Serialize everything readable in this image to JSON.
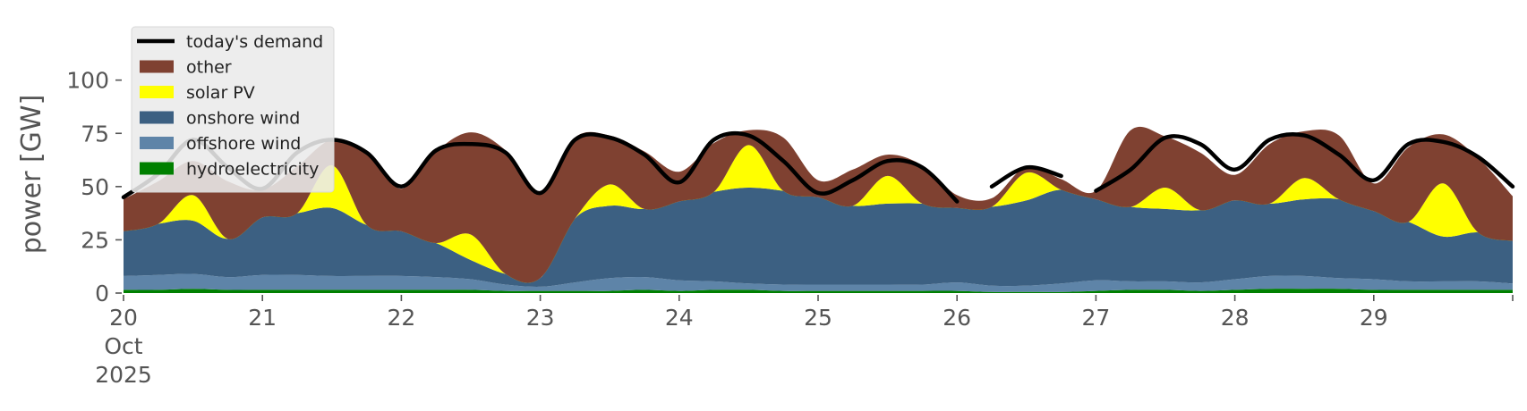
{
  "chart_data": {
    "type": "area",
    "title": "",
    "xlabel": "",
    "ylabel": "power [GW]",
    "ylim": [
      0,
      120
    ],
    "xlim": [
      "2025-10-20T00:00",
      "2025-10-30T00:00"
    ],
    "grid": false,
    "legend_position": "top-left",
    "y_ticks": [
      0,
      25,
      50,
      75,
      100
    ],
    "x_ticks": [
      {
        "date": "2025-10-20",
        "lines": [
          "20",
          "Oct",
          "2025"
        ]
      },
      {
        "date": "2025-10-21",
        "lines": [
          "21"
        ]
      },
      {
        "date": "2025-10-22",
        "lines": [
          "22"
        ]
      },
      {
        "date": "2025-10-23",
        "lines": [
          "23"
        ]
      },
      {
        "date": "2025-10-24",
        "lines": [
          "24"
        ]
      },
      {
        "date": "2025-10-25",
        "lines": [
          "25"
        ]
      },
      {
        "date": "2025-10-26",
        "lines": [
          "26"
        ]
      },
      {
        "date": "2025-10-27",
        "lines": [
          "27"
        ]
      },
      {
        "date": "2025-10-28",
        "lines": [
          "28"
        ]
      },
      {
        "date": "2025-10-29",
        "lines": [
          "29"
        ]
      },
      {
        "date": "2025-10-30",
        "lines": [
          ""
        ]
      }
    ],
    "x": [
      "2025-10-20T00:00",
      "2025-10-20T06:00",
      "2025-10-20T12:00",
      "2025-10-20T18:00",
      "2025-10-21T00:00",
      "2025-10-21T06:00",
      "2025-10-21T12:00",
      "2025-10-21T18:00",
      "2025-10-22T00:00",
      "2025-10-22T06:00",
      "2025-10-22T12:00",
      "2025-10-22T18:00",
      "2025-10-23T00:00",
      "2025-10-23T06:00",
      "2025-10-23T12:00",
      "2025-10-23T18:00",
      "2025-10-24T00:00",
      "2025-10-24T06:00",
      "2025-10-24T12:00",
      "2025-10-24T18:00",
      "2025-10-25T00:00",
      "2025-10-25T06:00",
      "2025-10-25T12:00",
      "2025-10-25T18:00",
      "2025-10-26T00:00",
      "2025-10-26T06:00",
      "2025-10-26T12:00",
      "2025-10-26T18:00",
      "2025-10-27T00:00",
      "2025-10-27T06:00",
      "2025-10-27T12:00",
      "2025-10-27T18:00",
      "2025-10-28T00:00",
      "2025-10-28T06:00",
      "2025-10-28T12:00",
      "2025-10-28T18:00",
      "2025-10-29T00:00",
      "2025-10-29T06:00",
      "2025-10-29T12:00",
      "2025-10-29T18:00",
      "2025-10-30T00:00"
    ],
    "series": [
      {
        "name": "hydroelectricity",
        "color": "#008000",
        "kind": "area",
        "values": [
          1.5,
          1.5,
          2,
          1.5,
          1.5,
          1.5,
          1.5,
          1.5,
          1.5,
          1.5,
          1.5,
          1,
          1,
          1,
          1,
          1.5,
          1,
          1.5,
          1.5,
          1,
          1,
          1,
          1,
          1,
          1,
          0.5,
          0.5,
          0.5,
          1,
          1.5,
          1.5,
          1,
          1.5,
          2,
          2,
          2,
          1.5,
          1.5,
          1.5,
          1.5,
          1.5
        ]
      },
      {
        "name": "offshore wind",
        "color": "#5e84a8",
        "kind": "area",
        "values": [
          6.5,
          7,
          7,
          6,
          7,
          7,
          6.5,
          6.5,
          6.5,
          6,
          5,
          3,
          2,
          4,
          6,
          6,
          5,
          4,
          3,
          3,
          3,
          3,
          3,
          3,
          4,
          3,
          3,
          4,
          5,
          4,
          4,
          4,
          5,
          6,
          6,
          5,
          5,
          4,
          4,
          4,
          3
        ]
      },
      {
        "name": "onshore wind",
        "color": "#3c6082",
        "kind": "area",
        "values": [
          21,
          24,
          25,
          18,
          27,
          29,
          32,
          24,
          21,
          16,
          9,
          5,
          4,
          30,
          34,
          32,
          37,
          42,
          45,
          44,
          41,
          37,
          38,
          38,
          35,
          37,
          40,
          44,
          38,
          35,
          34,
          34,
          37,
          34,
          36,
          37,
          32,
          28,
          21,
          23,
          20
        ]
      },
      {
        "name": "solar PV",
        "color": "#ffff00",
        "kind": "area",
        "values": [
          0,
          0,
          12,
          0,
          0,
          0,
          20,
          0,
          0,
          0,
          12,
          0,
          0,
          0,
          10,
          0,
          0,
          0,
          20,
          0,
          0,
          0,
          13,
          0,
          0,
          0,
          13,
          0,
          0,
          0,
          10,
          0,
          0,
          0,
          10,
          0,
          0,
          0,
          25,
          0,
          0
        ]
      },
      {
        "name": "other",
        "color": "#7f4131",
        "kind": "area",
        "values": [
          15,
          20,
          16,
          27,
          13,
          22,
          12,
          34,
          20,
          43,
          48,
          58,
          40,
          38,
          23,
          27,
          14,
          23,
          7,
          25,
          8,
          17,
          10,
          18,
          6,
          4,
          3,
          5,
          4,
          36,
          24,
          27,
          12,
          28,
          22,
          30,
          13,
          35,
          23,
          35,
          21
        ]
      },
      {
        "name": "today's demand",
        "color": "#000000",
        "kind": "line",
        "values": [
          45,
          56,
          72,
          59,
          49,
          66,
          72,
          66,
          50,
          67,
          70,
          66,
          47,
          72,
          73,
          65,
          52,
          72,
          74,
          62,
          47,
          53,
          62,
          59,
          43,
          50,
          59,
          55,
          48,
          58,
          73,
          70,
          58,
          72,
          74,
          65,
          53,
          70,
          71,
          64,
          50
        ],
        "gaps": [
          [
            24,
            25
          ],
          [
            27,
            28
          ]
        ]
      }
    ],
    "legend": [
      {
        "label": "today's demand",
        "color": "#000000",
        "kind": "line"
      },
      {
        "label": "other",
        "color": "#7f4131",
        "kind": "patch"
      },
      {
        "label": "solar PV",
        "color": "#ffff00",
        "kind": "patch"
      },
      {
        "label": "onshore wind",
        "color": "#3c6082",
        "kind": "patch"
      },
      {
        "label": "offshore wind",
        "color": "#5e84a8",
        "kind": "patch"
      },
      {
        "label": "hydroelectricity",
        "color": "#008000",
        "kind": "patch"
      }
    ]
  }
}
